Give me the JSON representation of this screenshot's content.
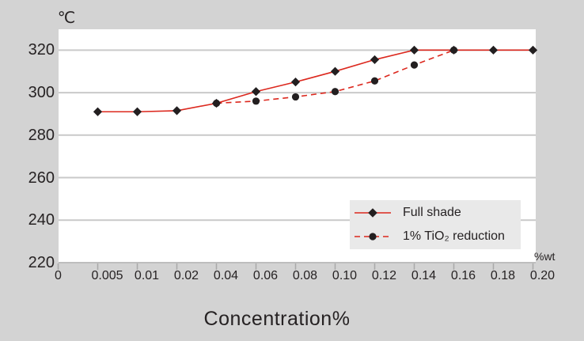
{
  "page": {
    "background": "#d3d3d3"
  },
  "chart_data": {
    "type": "line",
    "title": "",
    "y_axis_unit": "℃",
    "x_axis_label": "Concentration%",
    "x_unit_label": "%wt",
    "x_categories": [
      "0",
      "0.005",
      "0.01",
      "0.02",
      "0.04",
      "0.06",
      "0.08",
      "0.10",
      "0.12",
      "0.14",
      "0.16",
      "0.18",
      "0.20"
    ],
    "y_ticks": [
      220,
      240,
      260,
      280,
      300,
      320
    ],
    "ylim": [
      220,
      329.8
    ],
    "grid": true,
    "legend_position": "inside-bottom-right",
    "colors": {
      "line": "#dc281e",
      "marker": "#231f20",
      "plot_bg": "#ffffff",
      "gridline": "#c9c9c9",
      "axis_line": "#bdbdbd",
      "tick": "#a9a9a9",
      "legend_bg": "#e9e9e9",
      "text": "#262223"
    },
    "series": [
      {
        "name": "Full shade",
        "marker": "diamond",
        "line_style": "solid",
        "x": [
          "0.005",
          "0.01",
          "0.02",
          "0.04",
          "0.06",
          "0.08",
          "0.10",
          "0.12",
          "0.14",
          "0.16",
          "0.18",
          "0.20"
        ],
        "values": [
          291,
          291,
          291.5,
          295,
          300.5,
          305,
          310,
          315.5,
          320,
          320,
          320,
          320
        ]
      },
      {
        "name": "1% TiO₂ reduction",
        "marker": "circle",
        "line_style": "dashed",
        "x": [
          "0.04",
          "0.06",
          "0.08",
          "0.10",
          "0.12",
          "0.14",
          "0.16"
        ],
        "values": [
          295,
          296,
          298,
          300.5,
          305.5,
          313,
          320
        ]
      }
    ]
  }
}
